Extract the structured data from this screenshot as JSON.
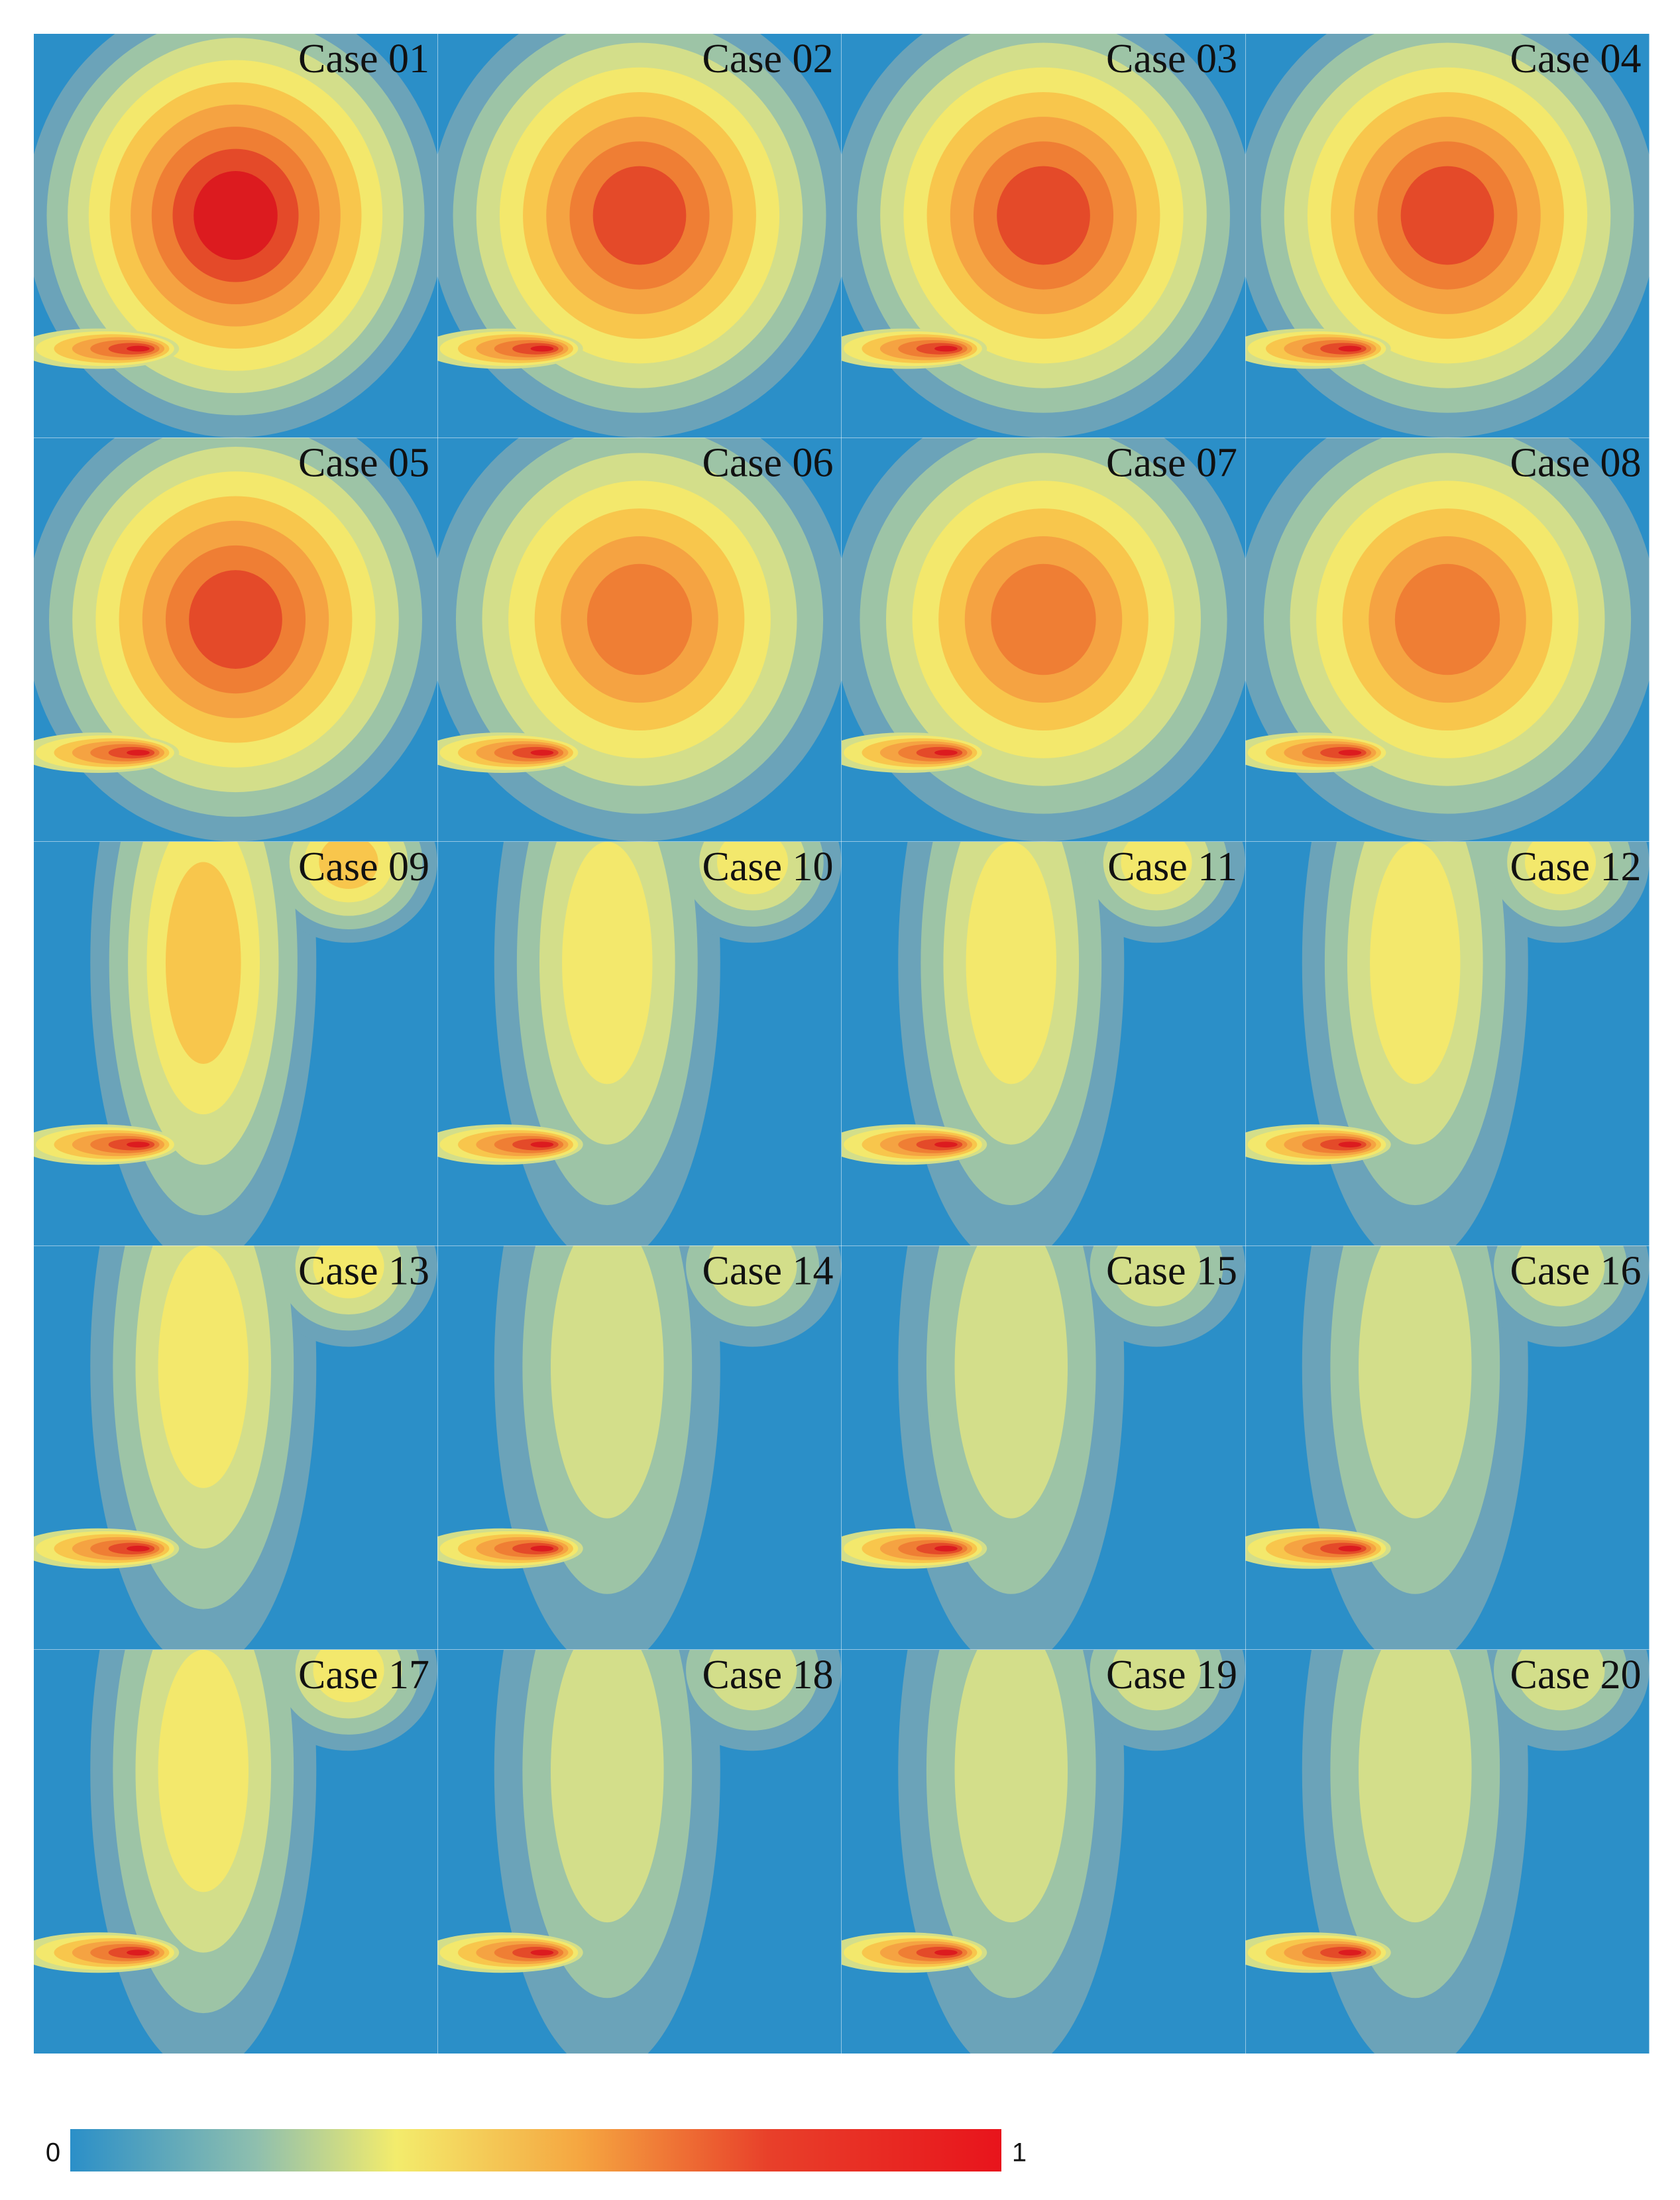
{
  "panels": [
    {
      "label": "Case 01"
    },
    {
      "label": "Case 02"
    },
    {
      "label": "Case 03"
    },
    {
      "label": "Case 04"
    },
    {
      "label": "Case 05"
    },
    {
      "label": "Case 06"
    },
    {
      "label": "Case 07"
    },
    {
      "label": "Case 08"
    },
    {
      "label": "Case 09"
    },
    {
      "label": "Case 10"
    },
    {
      "label": "Case 11"
    },
    {
      "label": "Case 12"
    },
    {
      "label": "Case 13"
    },
    {
      "label": "Case 14"
    },
    {
      "label": "Case 15"
    },
    {
      "label": "Case 16"
    },
    {
      "label": "Case 17"
    },
    {
      "label": "Case 18"
    },
    {
      "label": "Case 19"
    },
    {
      "label": "Case 20"
    }
  ],
  "colorbar": {
    "ticks": [
      0,
      1
    ]
  }
}
